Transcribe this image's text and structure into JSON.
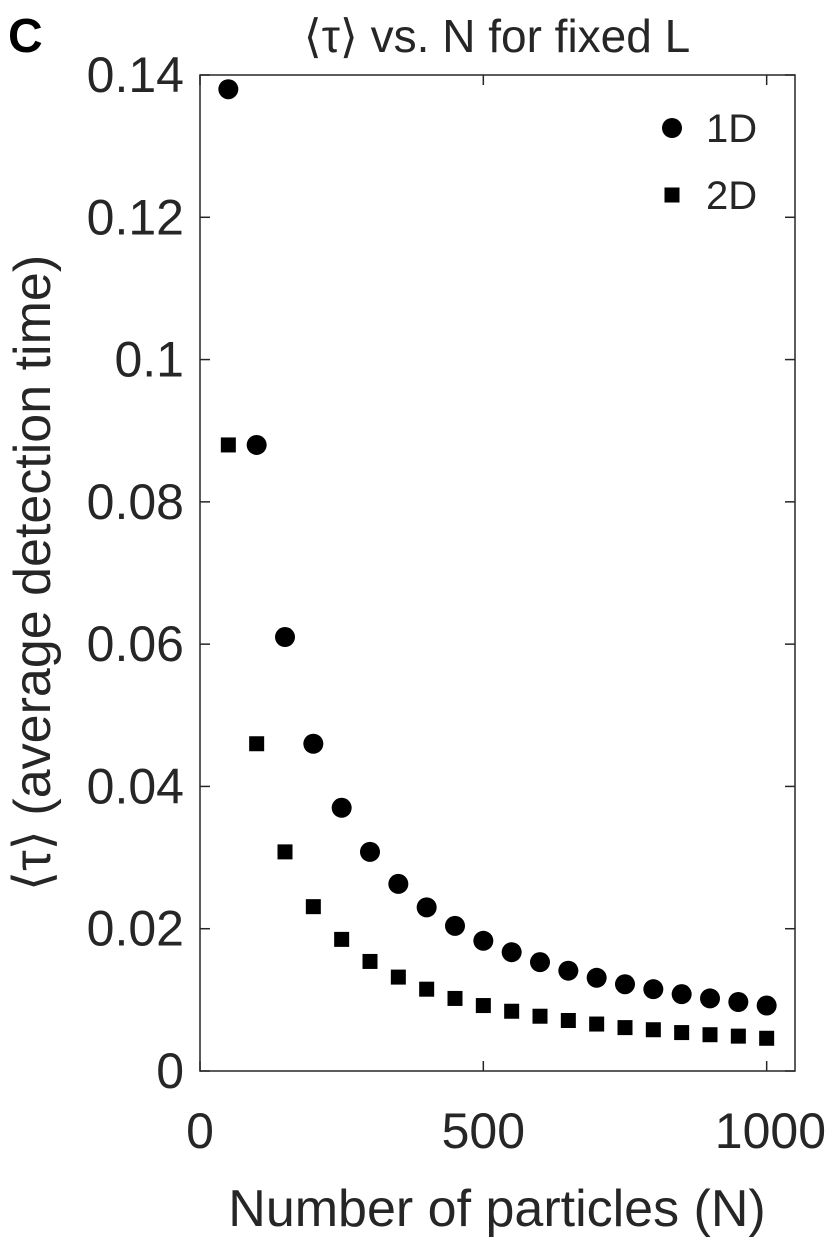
{
  "panel_label": "C",
  "chart_data": {
    "type": "scatter",
    "title": "⟨τ⟩ vs. N for fixed L",
    "xlabel": "Number of particles (N)",
    "ylabel": "⟨τ⟩ (average detection time)",
    "xlim": [
      0,
      1050
    ],
    "ylim": [
      0,
      0.14
    ],
    "xticks": [
      0,
      500,
      1000
    ],
    "xtick_labels": [
      "0",
      "500",
      "1000"
    ],
    "yticks": [
      0,
      0.02,
      0.04,
      0.06,
      0.08,
      0.1,
      0.12,
      0.14
    ],
    "ytick_labels": [
      "0",
      "0.02",
      "0.04",
      "0.06",
      "0.08",
      "0.1",
      "0.12",
      "0.14"
    ],
    "grid": false,
    "legend_position": "top-right",
    "series": [
      {
        "name": "1D",
        "marker": "circle",
        "color": "#000000",
        "x": [
          50,
          100,
          150,
          200,
          250,
          300,
          350,
          400,
          450,
          500,
          550,
          600,
          650,
          700,
          750,
          800,
          850,
          900,
          950,
          1000
        ],
        "y": [
          0.138,
          0.088,
          0.061,
          0.046,
          0.037,
          0.0308,
          0.0263,
          0.023,
          0.0204,
          0.0183,
          0.0167,
          0.0153,
          0.0141,
          0.0131,
          0.0122,
          0.0115,
          0.0108,
          0.0102,
          0.0097,
          0.0092
        ]
      },
      {
        "name": "2D",
        "marker": "square",
        "color": "#000000",
        "x": [
          50,
          100,
          150,
          200,
          250,
          300,
          350,
          400,
          450,
          500,
          550,
          600,
          650,
          700,
          750,
          800,
          850,
          900,
          950,
          1000
        ],
        "y": [
          0.088,
          0.046,
          0.0308,
          0.0231,
          0.0185,
          0.0154,
          0.0132,
          0.0115,
          0.0102,
          0.0092,
          0.0084,
          0.0077,
          0.0071,
          0.0066,
          0.0061,
          0.0058,
          0.0054,
          0.0051,
          0.0049,
          0.0046
        ]
      }
    ]
  }
}
